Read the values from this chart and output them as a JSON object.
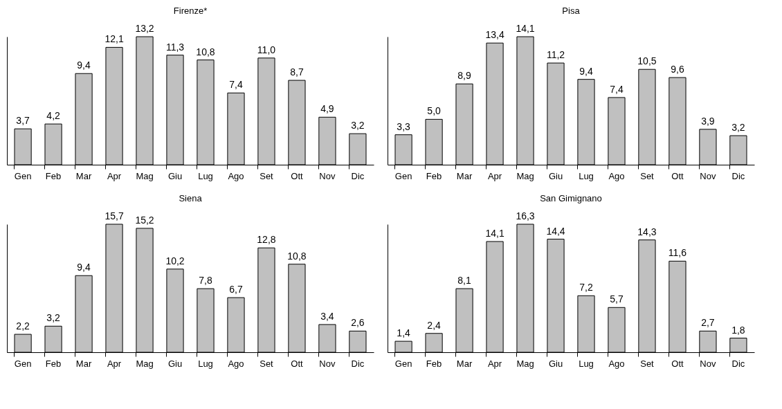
{
  "chart_data": [
    {
      "type": "bar",
      "title": "Firenze*",
      "categories": [
        "Gen",
        "Feb",
        "Mar",
        "Apr",
        "Mag",
        "Giu",
        "Lug",
        "Ago",
        "Set",
        "Ott",
        "Nov",
        "Dic"
      ],
      "values": [
        3.7,
        4.2,
        9.4,
        12.1,
        13.2,
        11.3,
        10.8,
        7.4,
        11.0,
        8.7,
        4.9,
        3.2
      ],
      "value_labels": [
        "3,7",
        "4,2",
        "9,4",
        "12,1",
        "13,2",
        "11,3",
        "10,8",
        "7,4",
        "11,0",
        "8,7",
        "4,9",
        "3,2"
      ],
      "color": "#c0c0c0",
      "tick_labels": "x"
    },
    {
      "type": "bar",
      "title": "Pisa",
      "categories": [
        "Gen",
        "Feb",
        "Mar",
        "Apr",
        "Mag",
        "Giu",
        "Lug",
        "Ago",
        "Set",
        "Ott",
        "Nov",
        "Dic"
      ],
      "values": [
        3.3,
        5.0,
        8.9,
        13.4,
        14.1,
        11.2,
        9.4,
        7.4,
        10.5,
        9.6,
        3.9,
        3.2
      ],
      "value_labels": [
        "3,3",
        "5,0",
        "8,9",
        "13,4",
        "14,1",
        "11,2",
        "9,4",
        "7,4",
        "10,5",
        "9,6",
        "3,9",
        "3,2"
      ],
      "color": "#c0c0c0",
      "tick_labels": "x"
    },
    {
      "type": "bar",
      "title": "Siena",
      "categories": [
        "Gen",
        "Feb",
        "Mar",
        "Apr",
        "Mag",
        "Giu",
        "Lug",
        "Ago",
        "Set",
        "Ott",
        "Nov",
        "Dic"
      ],
      "values": [
        2.2,
        3.2,
        9.4,
        15.7,
        15.2,
        10.2,
        7.8,
        6.7,
        12.8,
        10.8,
        3.4,
        2.6
      ],
      "value_labels": [
        "2,2",
        "3,2",
        "9,4",
        "15,7",
        "15,2",
        "10,2",
        "7,8",
        "6,7",
        "12,8",
        "10,8",
        "3,4",
        "2,6"
      ],
      "color": "#c0c0c0",
      "tick_labels": "x"
    },
    {
      "type": "bar",
      "title": "San Gimignano",
      "categories": [
        "Gen",
        "Feb",
        "Mar",
        "Apr",
        "Mag",
        "Giu",
        "Lug",
        "Ago",
        "Set",
        "Ott",
        "Nov",
        "Dic"
      ],
      "values": [
        1.4,
        2.4,
        8.1,
        14.1,
        16.3,
        14.4,
        7.2,
        5.7,
        14.3,
        11.6,
        2.7,
        1.8
      ],
      "value_labels": [
        "1,4",
        "2,4",
        "8,1",
        "14,1",
        "16,3",
        "14,4",
        "7,2",
        "5,7",
        "14,3",
        "11,6",
        "2,7",
        "1,8"
      ],
      "color": "#c0c0c0",
      "tick_labels": "x"
    }
  ]
}
